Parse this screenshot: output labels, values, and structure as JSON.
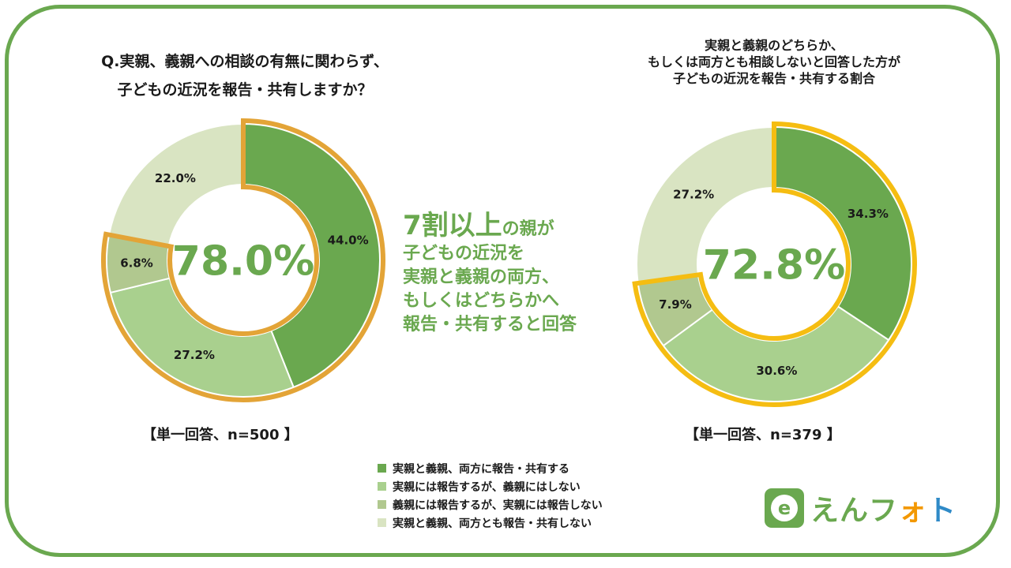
{
  "colors": {
    "frame": "#6aa84f",
    "accent": "#6aa84f",
    "slice_dark": "#6aa84f",
    "slice_light": "#a9d08e",
    "slice_mid": "#b1c88f",
    "slice_pale": "#d9e4c2",
    "highlight_left": "#e3a437",
    "highlight_right": "#f5bd12"
  },
  "left": {
    "title_line1": "Q.実親、義親への相談の有無に関わらず、",
    "title_line2": "子どもの近況を報告・共有しますか？",
    "center_value": "78.0%",
    "note": "【単一回答、n=500 】"
  },
  "right": {
    "title_line1": "実親と義親のどちらか、",
    "title_line2": "もしくは両方とも相談しないと回答した方が",
    "title_line3": "子どもの近況を報告・共有する割合",
    "center_value": "72.8%",
    "note": "【単一回答、n=379 】"
  },
  "callout": {
    "highlight_big": "7割以上",
    "highlight_small": "の親が",
    "line1": "子どもの近況を",
    "line2": "実親と義親の両方、",
    "line3": "もしくはどちらかへ",
    "line4": "報告・共有すると回答"
  },
  "legend": [
    {
      "label": "実親と義親、両方に報告・共有する",
      "color": "#6aa84f"
    },
    {
      "label": "実親には報告するが、義親にはしない",
      "color": "#a9d08e"
    },
    {
      "label": "義親には報告するが、実親には報告しない",
      "color": "#b1c88f"
    },
    {
      "label": "実親と義親、両方とも報告・共有しない",
      "color": "#d9e4c2"
    }
  ],
  "logo": {
    "icon_letter": "e",
    "name_part1": "えんフ",
    "name_part2": "ォ",
    "name_part3": "ト"
  },
  "chart_data": [
    {
      "type": "pie",
      "title": "Q.実親、義親への相談の有無に関わらず、子どもの近況を報告・共有しますか？",
      "center_label": "78.0%",
      "n": 500,
      "categories": [
        "実親と義親、両方に報告・共有する",
        "実親には報告するが、義親にはしない",
        "義親には報告するが、実親には報告しない",
        "実親と義親、両方とも報告・共有しない"
      ],
      "values": [
        44.0,
        27.2,
        6.8,
        22.0
      ],
      "labels": [
        "44.0%",
        "27.2%",
        "6.8%",
        "22.0%"
      ],
      "highlighted": [
        0,
        1,
        2
      ]
    },
    {
      "type": "pie",
      "title": "実親と義親のどちらか、もしくは両方とも相談しないと回答した方が子どもの近況を報告・共有する割合",
      "center_label": "72.8%",
      "n": 379,
      "categories": [
        "実親と義親、両方に報告・共有する",
        "実親には報告するが、義親にはしない",
        "義親には報告するが、実親には報告しない",
        "実親と義親、両方とも報告・共有しない"
      ],
      "values": [
        34.3,
        30.6,
        7.9,
        27.2
      ],
      "labels": [
        "34.3%",
        "30.6%",
        "7.9%",
        "27.2%"
      ],
      "highlighted": [
        0,
        1,
        2
      ]
    }
  ]
}
